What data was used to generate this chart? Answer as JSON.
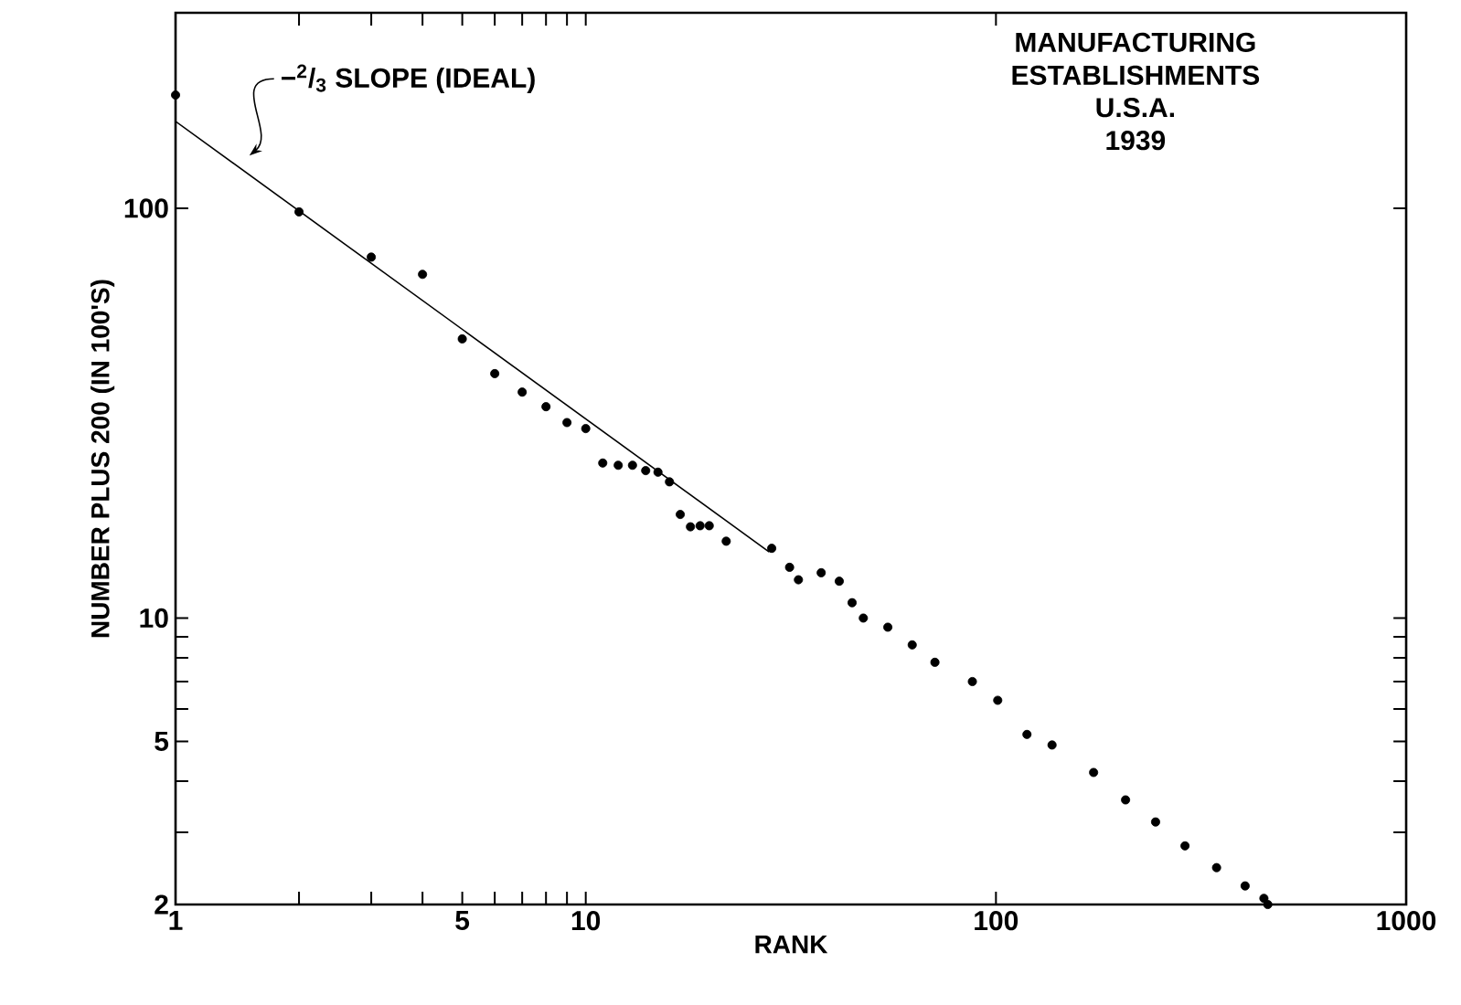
{
  "chart_data": {
    "type": "scatter",
    "title": "MANUFACTURING ESTABLISHMENTS",
    "subtitle": "U.S.A. 1939",
    "xlabel": "RANK",
    "ylabel": "NUMBER PLUS 200 (IN 100'S)",
    "annotations": [
      "−$^{2}$/$_{3}$ SLOPE (IDEAL)"
    ],
    "log": "xy",
    "grid": false,
    "marker": "circle",
    "xlim": [
      1,
      1000
    ],
    "ylim": [
      2,
      300
    ],
    "xticks": [
      1,
      {
        "value": 2,
        "label": null
      },
      {
        "value": 3,
        "label": null
      },
      {
        "value": 4,
        "label": null
      },
      5,
      {
        "value": 6,
        "label": null
      },
      {
        "value": 7,
        "label": null
      },
      {
        "value": 8,
        "label": null
      },
      {
        "value": 9,
        "label": null
      },
      10,
      100,
      1000
    ],
    "yticks": [
      2,
      {
        "value": 3,
        "label": null
      },
      {
        "value": 4,
        "label": null
      },
      5,
      {
        "value": 6,
        "label": null
      },
      {
        "value": 7,
        "label": null
      },
      {
        "value": 8,
        "label": null
      },
      {
        "value": 9,
        "label": null
      },
      10,
      100
    ],
    "series": [
      {
        "color": "#000000",
        "x": [
          1,
          2,
          3,
          4,
          5,
          6,
          7,
          8,
          9,
          10,
          11,
          12,
          13,
          14,
          15,
          16,
          17,
          18,
          19,
          20,
          22,
          28.4,
          31.4,
          33,
          37.5,
          41.5,
          44.6,
          47.5,
          54.5,
          62.5,
          71,
          87.6,
          101,
          119,
          137,
          173,
          207,
          245,
          289,
          345,
          405,
          450,
          460
        ],
        "values": [
          189,
          98,
          76,
          69,
          48,
          39.5,
          35.6,
          32.8,
          30,
          29,
          23.9,
          23.6,
          23.6,
          22.9,
          22.7,
          21.5,
          17.9,
          16.7,
          16.8,
          16.8,
          15.4,
          14.8,
          13.3,
          12.4,
          12.9,
          12.3,
          10.9,
          10.0,
          9.5,
          8.6,
          7.8,
          7.0,
          6.3,
          5.2,
          4.9,
          4.2,
          3.6,
          3.18,
          2.78,
          2.46,
          2.22,
          2.07,
          2.0
        ]
      },
      {
        "type": "line",
        "color": "#000000",
        "marker": "none",
        "x": [
          1,
          28
        ],
        "values": [
          163,
          14.5
        ]
      }
    ]
  }
}
